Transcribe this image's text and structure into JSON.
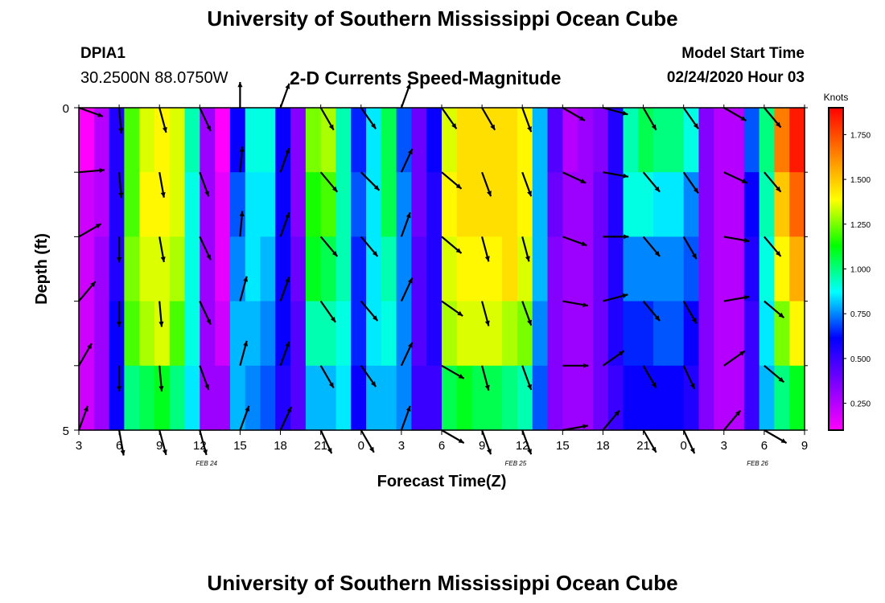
{
  "header": {
    "title": "University of Southern Mississippi Ocean Cube",
    "station": "DPIA1",
    "coordinates": "30.2500N 88.0750W",
    "chart_title": "2-D Currents Speed-Magnitude",
    "model_start_label": "Model Start Time",
    "model_start_value": "02/24/2020 Hour 03"
  },
  "footer": {
    "title": "University of Southern Mississippi Ocean Cube"
  },
  "chart_data": {
    "type": "heatmap",
    "title": "2-D Currents Speed-Magnitude",
    "xlabel": "Forecast Time(Z)",
    "ylabel": "Depth (ft)",
    "x_hours_range": [
      0,
      54
    ],
    "y_range": [
      0,
      5
    ],
    "x_ticks": [
      {
        "hour": 0,
        "label": "3"
      },
      {
        "hour": 3,
        "label": "6"
      },
      {
        "hour": 6,
        "label": "9"
      },
      {
        "hour": 9,
        "label": "12"
      },
      {
        "hour": 12,
        "label": "15"
      },
      {
        "hour": 15,
        "label": "18"
      },
      {
        "hour": 18,
        "label": "21"
      },
      {
        "hour": 21,
        "label": "0"
      },
      {
        "hour": 24,
        "label": "3"
      },
      {
        "hour": 27,
        "label": "6"
      },
      {
        "hour": 30,
        "label": "9"
      },
      {
        "hour": 33,
        "label": "12"
      },
      {
        "hour": 36,
        "label": "15"
      },
      {
        "hour": 39,
        "label": "18"
      },
      {
        "hour": 42,
        "label": "21"
      },
      {
        "hour": 45,
        "label": "0"
      },
      {
        "hour": 48,
        "label": "3"
      },
      {
        "hour": 51,
        "label": "6"
      },
      {
        "hour": 54,
        "label": "9"
      }
    ],
    "date_labels": [
      {
        "hour": 9.5,
        "label": "FEB 24"
      },
      {
        "hour": 32.5,
        "label": "FEB 25"
      },
      {
        "hour": 50.5,
        "label": "FEB 26"
      }
    ],
    "y_ticks": [
      {
        "value": 0,
        "label": "0"
      },
      {
        "value": 5,
        "label": "5"
      }
    ],
    "depth_layers": [
      0.5,
      1.5,
      2.5,
      3.5,
      4.5
    ],
    "speed_knots": [
      [
        0.1,
        0.25,
        0.55,
        1.2,
        1.35,
        1.4,
        1.35,
        0.95,
        0.3,
        0.1,
        0.6,
        0.9,
        0.9,
        0.6,
        0.35,
        1.25,
        1.3,
        0.95,
        0.65,
        0.85,
        1.05,
        0.7,
        0.4,
        0.6,
        1.35,
        1.45,
        1.45,
        1.45,
        1.45,
        1.4,
        0.8,
        0.45,
        0.25,
        0.3,
        0.35,
        0.55,
        0.95,
        1.05,
        1.0,
        1.0,
        0.9,
        0.35,
        0.25,
        0.25,
        0.7,
        1.0,
        1.65,
        1.85
      ],
      [
        0.2,
        0.25,
        0.55,
        1.2,
        1.4,
        1.4,
        1.35,
        0.9,
        0.3,
        0.15,
        0.7,
        0.85,
        0.85,
        0.6,
        0.35,
        1.15,
        1.2,
        0.95,
        0.7,
        0.85,
        1.05,
        0.75,
        0.4,
        0.55,
        1.4,
        1.45,
        1.45,
        1.45,
        1.45,
        1.4,
        0.8,
        0.4,
        0.3,
        0.3,
        0.4,
        0.55,
        0.9,
        0.9,
        0.85,
        0.85,
        0.75,
        0.35,
        0.25,
        0.25,
        0.6,
        0.95,
        1.5,
        1.7
      ],
      [
        0.2,
        0.3,
        0.55,
        1.25,
        1.35,
        1.35,
        1.3,
        0.9,
        0.3,
        0.15,
        0.75,
        0.85,
        0.8,
        0.6,
        0.4,
        1.1,
        1.05,
        0.95,
        0.65,
        0.85,
        0.95,
        0.75,
        0.45,
        0.55,
        1.35,
        1.4,
        1.4,
        1.4,
        1.45,
        1.35,
        0.8,
        0.35,
        0.3,
        0.3,
        0.4,
        0.55,
        0.75,
        0.75,
        0.75,
        0.75,
        0.7,
        0.35,
        0.25,
        0.25,
        0.55,
        0.9,
        1.4,
        1.55
      ],
      [
        0.2,
        0.3,
        0.6,
        1.2,
        1.3,
        1.35,
        1.2,
        0.9,
        0.3,
        0.2,
        0.8,
        0.8,
        0.75,
        0.6,
        0.45,
        0.95,
        0.95,
        0.9,
        0.65,
        0.85,
        0.9,
        0.75,
        0.45,
        0.55,
        1.3,
        1.35,
        1.35,
        1.35,
        1.3,
        1.25,
        0.75,
        0.35,
        0.3,
        0.3,
        0.4,
        0.55,
        0.65,
        0.65,
        0.7,
        0.7,
        0.6,
        0.35,
        0.25,
        0.25,
        0.5,
        0.85,
        1.25,
        1.4
      ],
      [
        0.2,
        0.3,
        0.6,
        1.0,
        1.05,
        1.1,
        1.0,
        0.85,
        0.3,
        0.3,
        0.8,
        0.75,
        0.7,
        0.55,
        0.45,
        0.8,
        0.8,
        0.85,
        0.6,
        0.8,
        0.8,
        0.75,
        0.5,
        0.5,
        1.05,
        1.1,
        1.05,
        1.05,
        1.0,
        0.95,
        0.7,
        0.35,
        0.3,
        0.3,
        0.4,
        0.5,
        0.6,
        0.6,
        0.6,
        0.6,
        0.55,
        0.35,
        0.25,
        0.25,
        0.5,
        0.8,
        1.0,
        1.1
      ]
    ],
    "arrow_hours": [
      0,
      3,
      6,
      9,
      12,
      15,
      18,
      21,
      24,
      27,
      30,
      33,
      36,
      39,
      42,
      45,
      48,
      51
    ],
    "arrow_directions_deg": [
      [
        110,
        175,
        165,
        155,
        0,
        20,
        150,
        145,
        20,
        145,
        150,
        160,
        120,
        105,
        150,
        145,
        120,
        140
      ],
      [
        85,
        175,
        170,
        160,
        5,
        20,
        140,
        135,
        25,
        130,
        160,
        160,
        115,
        100,
        140,
        145,
        115,
        140
      ],
      [
        60,
        180,
        170,
        155,
        5,
        20,
        140,
        140,
        20,
        130,
        165,
        165,
        110,
        90,
        140,
        150,
        100,
        140
      ],
      [
        40,
        180,
        175,
        155,
        15,
        20,
        145,
        140,
        25,
        125,
        165,
        160,
        100,
        75,
        140,
        150,
        80,
        130
      ],
      [
        30,
        180,
        175,
        160,
        15,
        20,
        150,
        145,
        25,
        120,
        165,
        160,
        90,
        55,
        150,
        155,
        55,
        130
      ],
      [
        20,
        170,
        165,
        165,
        20,
        25,
        155,
        150,
        20,
        120,
        160,
        160,
        80,
        40,
        150,
        155,
        40,
        120
      ]
    ],
    "arrow_depths": [
      0,
      1,
      2,
      3,
      4,
      5
    ],
    "colorbar": {
      "title": "Knots",
      "ticks": [
        "1.750",
        "1.500",
        "1.250",
        "1.000",
        "0.750",
        "0.500",
        "0.250"
      ],
      "tick_values": [
        1.75,
        1.5,
        1.25,
        1.0,
        0.75,
        0.5,
        0.25
      ],
      "range": [
        0.1,
        1.9
      ],
      "colors": [
        "#ff00ff",
        "#8000ff",
        "#0000ff",
        "#00ffff",
        "#00ff00",
        "#ffff00",
        "#ff8000",
        "#ff0000"
      ]
    }
  }
}
